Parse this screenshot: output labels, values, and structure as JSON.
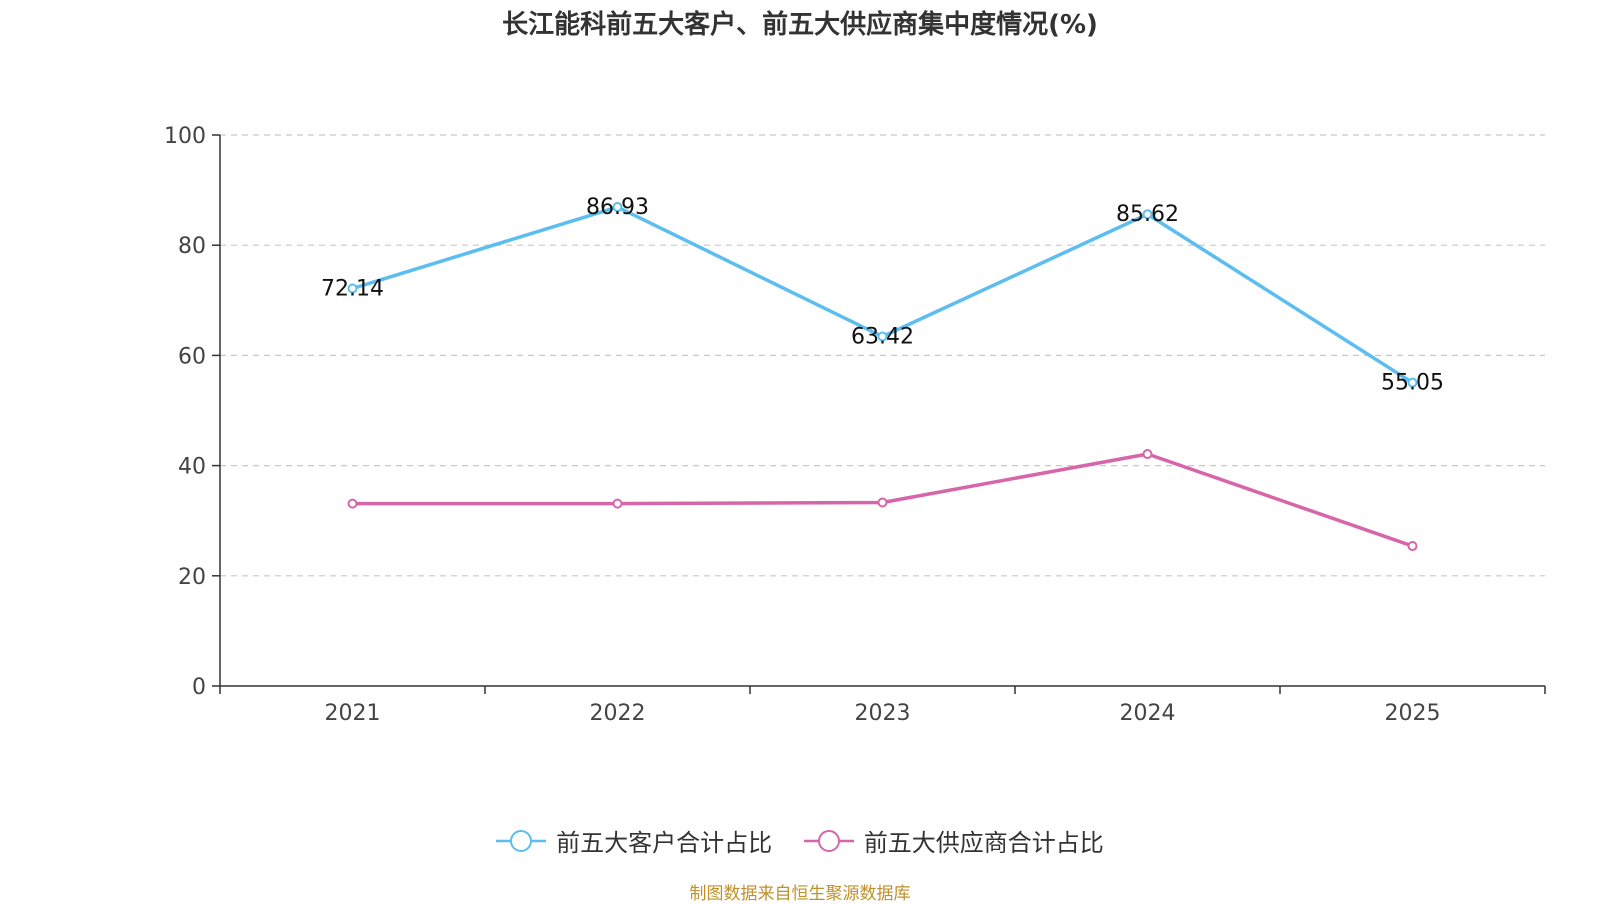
{
  "title": "长江能科前五大客户、前五大供应商集中度情况(%)",
  "source": "制图数据来自恒生聚源数据库",
  "chart_data": {
    "type": "line",
    "title": "长江能科前五大客户、前五大供应商集中度情况(%)",
    "categories": [
      "2021",
      "2022",
      "2023",
      "2024",
      "2025"
    ],
    "ylim": [
      0,
      100
    ],
    "yticks": [
      0,
      20,
      40,
      60,
      80,
      100
    ],
    "grid": true,
    "legend_position": "bottom",
    "series": [
      {
        "name": "前五大客户合计占比",
        "color": "#5bbdf0",
        "values": [
          72.14,
          86.93,
          63.42,
          85.62,
          55.05
        ],
        "labels": [
          "72.14",
          "86.93",
          "63.42",
          "85.62",
          "55.05"
        ]
      },
      {
        "name": "前五大供应商合计占比",
        "color": "#d665a9",
        "values": [
          33.1,
          33.1,
          33.3,
          42.1,
          25.4
        ],
        "labels": []
      }
    ]
  }
}
